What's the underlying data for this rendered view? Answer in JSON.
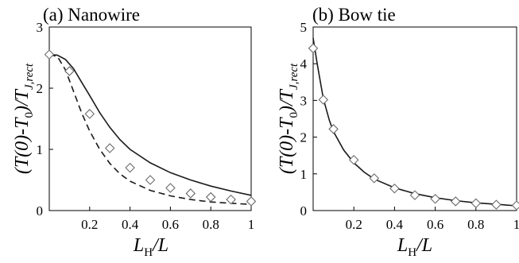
{
  "chart_data": [
    {
      "type": "line",
      "panel": "(a)",
      "title": "Nanowire",
      "xlabel": {
        "main": "L",
        "sub": "H",
        "suffix": "/L"
      },
      "ylabel": {
        "prefix": "(T(0)-T",
        "sub1": "0",
        "middle": ")/T",
        "sub2": "J,rect"
      },
      "xlim": [
        0,
        1
      ],
      "ylim": [
        0,
        3
      ],
      "xticks": [
        "0.2",
        "0.4",
        "0.6",
        "0.8",
        "1"
      ],
      "yticks": [
        "0",
        "1",
        "2",
        "3"
      ],
      "series": [
        {
          "style": "solid",
          "x": [
            0,
            0.04,
            0.08,
            0.12,
            0.16,
            0.2,
            0.25,
            0.3,
            0.35,
            0.4,
            0.5,
            0.6,
            0.7,
            0.8,
            0.9,
            1.0
          ],
          "values": [
            2.55,
            2.54,
            2.47,
            2.32,
            2.1,
            1.88,
            1.6,
            1.36,
            1.16,
            1.0,
            0.78,
            0.62,
            0.5,
            0.4,
            0.32,
            0.25
          ]
        },
        {
          "style": "dashed",
          "x": [
            0,
            0.04,
            0.08,
            0.12,
            0.16,
            0.2,
            0.25,
            0.3,
            0.35,
            0.4,
            0.5,
            0.6,
            0.7,
            0.8,
            0.9,
            1.0
          ],
          "values": [
            2.55,
            2.52,
            2.3,
            1.95,
            1.6,
            1.3,
            1.0,
            0.77,
            0.6,
            0.48,
            0.33,
            0.24,
            0.18,
            0.14,
            0.12,
            0.1
          ]
        },
        {
          "style": "diamond markers",
          "x": [
            0.0,
            0.1,
            0.2,
            0.3,
            0.4,
            0.5,
            0.6,
            0.7,
            0.8,
            0.9,
            1.0
          ],
          "values": [
            2.55,
            2.28,
            1.58,
            1.02,
            0.7,
            0.5,
            0.37,
            0.28,
            0.22,
            0.18,
            0.15
          ]
        }
      ]
    },
    {
      "type": "line",
      "panel": "(b)",
      "title": "Bow tie",
      "xlabel": {
        "main": "L",
        "sub": "H",
        "suffix": "/L"
      },
      "ylabel": {
        "prefix": "(T(0)-T",
        "sub1": "0",
        "middle": ")/T",
        "sub2": "J,rect"
      },
      "xlim": [
        0,
        1
      ],
      "ylim": [
        0,
        5
      ],
      "xticks": [
        "0.2",
        "0.4",
        "0.6",
        "0.8",
        "1"
      ],
      "yticks": [
        "0",
        "1",
        "2",
        "3",
        "4",
        "5"
      ],
      "series": [
        {
          "style": "solid",
          "x": [
            0.0,
            0.02,
            0.05,
            0.08,
            0.1,
            0.15,
            0.2,
            0.25,
            0.3,
            0.4,
            0.5,
            0.6,
            0.7,
            0.8,
            0.9,
            1.0
          ],
          "values": [
            4.7,
            4.0,
            3.05,
            2.45,
            2.15,
            1.65,
            1.3,
            1.05,
            0.86,
            0.62,
            0.46,
            0.35,
            0.27,
            0.21,
            0.17,
            0.13
          ]
        },
        {
          "style": "diamond markers",
          "x": [
            0.0,
            0.05,
            0.1,
            0.2,
            0.3,
            0.4,
            0.5,
            0.6,
            0.7,
            0.8,
            0.9,
            1.0
          ],
          "values": [
            4.42,
            3.02,
            2.22,
            1.38,
            0.88,
            0.6,
            0.42,
            0.32,
            0.25,
            0.2,
            0.16,
            0.14
          ]
        }
      ]
    }
  ]
}
